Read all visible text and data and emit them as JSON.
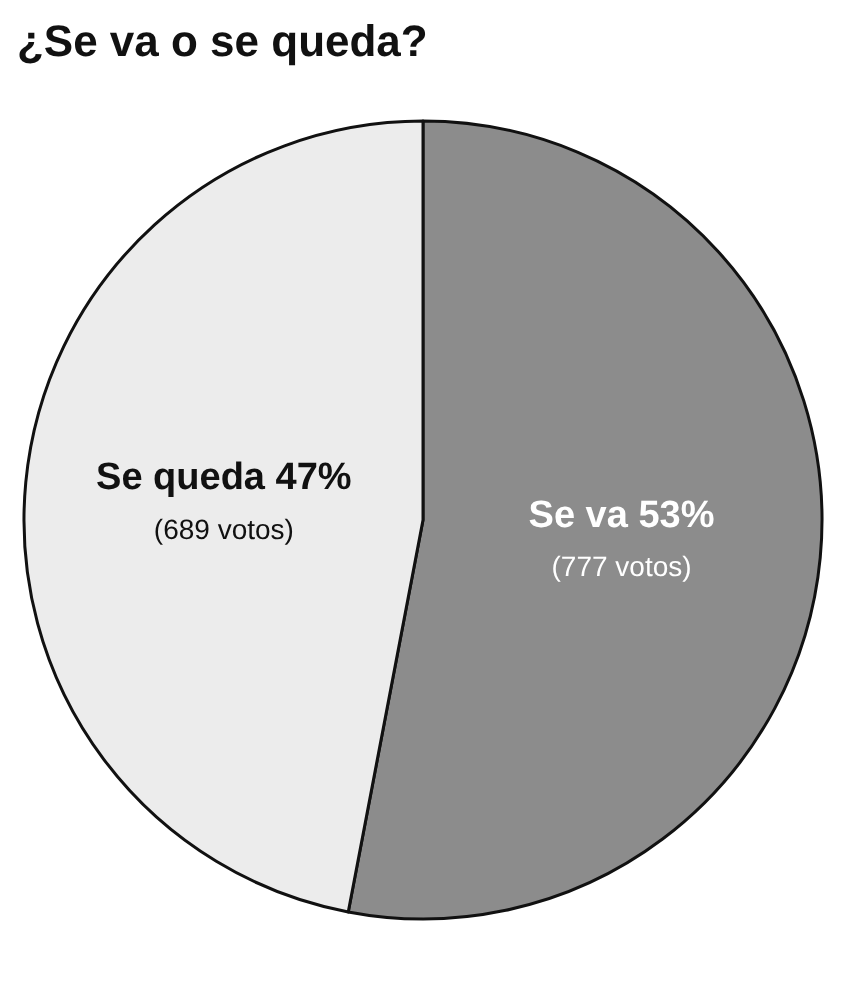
{
  "chart_data": {
    "type": "pie",
    "title": "¿Se va o se queda?",
    "categories": [
      "Se va",
      "Se queda"
    ],
    "values": [
      53,
      47
    ],
    "value_labels": [
      "53%\n(777 votos)",
      "47%\n(689 votos)"
    ],
    "colors": [
      "#8c8c8c",
      "#ececec"
    ],
    "legend": false
  }
}
